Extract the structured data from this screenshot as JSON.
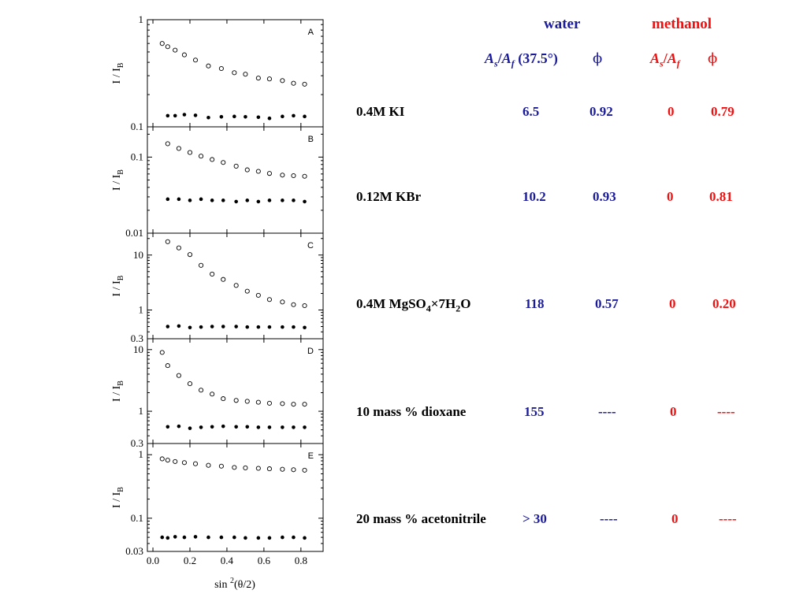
{
  "chart_data": {
    "type": "scatter",
    "xlabel_main": "sin",
    "xlabel_sup": "2",
    "xlabel_tail": "(θ/2)",
    "xticks": [
      "0.0",
      "0.2",
      "0.4",
      "0.6",
      "0.8"
    ],
    "xlim": [
      -0.03,
      0.92
    ],
    "yscale": "log",
    "panels": [
      {
        "letter": "A",
        "ylabel": "I / I",
        "ylabel_sub": "B",
        "ylim": [
          0.1,
          1
        ],
        "yticks": [
          1,
          0.1
        ],
        "ytick_labels": [
          "1",
          "0.1"
        ],
        "series": [
          {
            "marker": "open-circle",
            "x": [
              0.05,
              0.08,
              0.12,
              0.17,
              0.23,
              0.3,
              0.37,
              0.44,
              0.5,
              0.57,
              0.63,
              0.7,
              0.76,
              0.82
            ],
            "y": [
              0.6,
              0.56,
              0.52,
              0.47,
              0.42,
              0.37,
              0.35,
              0.32,
              0.31,
              0.285,
              0.28,
              0.27,
              0.255,
              0.25
            ]
          },
          {
            "marker": "filled-circle",
            "x": [
              0.08,
              0.12,
              0.17,
              0.23,
              0.3,
              0.37,
              0.44,
              0.5,
              0.57,
              0.63,
              0.7,
              0.76,
              0.82
            ],
            "y": [
              0.127,
              0.127,
              0.13,
              0.128,
              0.122,
              0.124,
              0.125,
              0.124,
              0.123,
              0.12,
              0.125,
              0.127,
              0.125
            ]
          }
        ]
      },
      {
        "letter": "B",
        "ylabel": "I / I",
        "ylabel_sub": "B",
        "ylim": [
          0.01,
          0.25
        ],
        "yticks": [
          0.1,
          0.01
        ],
        "ytick_labels": [
          "0.1",
          "0.01"
        ],
        "series": [
          {
            "marker": "open-circle",
            "x": [
              0.08,
              0.14,
              0.2,
              0.26,
              0.32,
              0.38,
              0.45,
              0.51,
              0.57,
              0.63,
              0.7,
              0.76,
              0.82
            ],
            "y": [
              0.15,
              0.13,
              0.115,
              0.103,
              0.093,
              0.085,
              0.076,
              0.068,
              0.065,
              0.061,
              0.058,
              0.057,
              0.056
            ]
          },
          {
            "marker": "filled-circle",
            "x": [
              0.08,
              0.14,
              0.2,
              0.26,
              0.32,
              0.38,
              0.45,
              0.51,
              0.57,
              0.63,
              0.7,
              0.76,
              0.82
            ],
            "y": [
              0.028,
              0.028,
              0.027,
              0.028,
              0.027,
              0.027,
              0.026,
              0.027,
              0.026,
              0.027,
              0.027,
              0.027,
              0.026
            ]
          }
        ]
      },
      {
        "letter": "C",
        "ylabel": "I / I",
        "ylabel_sub": "B",
        "ylim": [
          0.3,
          25
        ],
        "yticks": [
          10,
          1,
          0.3
        ],
        "ytick_labels": [
          "10",
          "1",
          "0.3"
        ],
        "series": [
          {
            "marker": "open-circle",
            "x": [
              0.08,
              0.14,
              0.2,
              0.26,
              0.32,
              0.38,
              0.45,
              0.51,
              0.57,
              0.63,
              0.7,
              0.76,
              0.82
            ],
            "y": [
              17.5,
              13.5,
              10.2,
              6.5,
              4.5,
              3.6,
              2.8,
              2.2,
              1.85,
              1.55,
              1.4,
              1.25,
              1.2
            ]
          },
          {
            "marker": "filled-circle",
            "x": [
              0.08,
              0.14,
              0.2,
              0.26,
              0.32,
              0.38,
              0.45,
              0.51,
              0.57,
              0.63,
              0.7,
              0.76,
              0.82
            ],
            "y": [
              0.5,
              0.51,
              0.48,
              0.49,
              0.5,
              0.5,
              0.5,
              0.49,
              0.49,
              0.49,
              0.49,
              0.49,
              0.48
            ]
          }
        ]
      },
      {
        "letter": "D",
        "ylabel": "I / I",
        "ylabel_sub": "B",
        "ylim": [
          0.3,
          15
        ],
        "yticks": [
          10,
          1,
          0.3
        ],
        "ytick_labels": [
          "10",
          "1",
          "0.3"
        ],
        "series": [
          {
            "marker": "open-circle",
            "x": [
              0.05,
              0.08,
              0.14,
              0.2,
              0.26,
              0.32,
              0.38,
              0.45,
              0.51,
              0.57,
              0.63,
              0.7,
              0.76,
              0.82
            ],
            "y": [
              9.0,
              5.5,
              3.8,
              2.8,
              2.2,
              1.9,
              1.6,
              1.5,
              1.45,
              1.4,
              1.35,
              1.33,
              1.3,
              1.3
            ]
          },
          {
            "marker": "filled-circle",
            "x": [
              0.08,
              0.14,
              0.2,
              0.26,
              0.32,
              0.38,
              0.45,
              0.51,
              0.57,
              0.63,
              0.7,
              0.76,
              0.82
            ],
            "y": [
              0.56,
              0.57,
              0.53,
              0.55,
              0.56,
              0.57,
              0.56,
              0.56,
              0.55,
              0.55,
              0.55,
              0.55,
              0.55
            ]
          }
        ]
      },
      {
        "letter": "E",
        "ylabel": "I / I",
        "ylabel_sub": "B",
        "ylim": [
          0.03,
          1.5
        ],
        "yticks": [
          1,
          0.1,
          0.03
        ],
        "ytick_labels": [
          "1",
          "0.1",
          "0.03"
        ],
        "series": [
          {
            "marker": "open-circle",
            "x": [
              0.05,
              0.08,
              0.12,
              0.17,
              0.23,
              0.3,
              0.37,
              0.44,
              0.5,
              0.57,
              0.63,
              0.7,
              0.76,
              0.82
            ],
            "y": [
              0.86,
              0.82,
              0.78,
              0.75,
              0.72,
              0.68,
              0.66,
              0.63,
              0.62,
              0.61,
              0.6,
              0.59,
              0.58,
              0.57
            ]
          },
          {
            "marker": "filled-circle",
            "x": [
              0.05,
              0.08,
              0.12,
              0.17,
              0.23,
              0.3,
              0.37,
              0.44,
              0.5,
              0.57,
              0.63,
              0.7,
              0.76,
              0.82
            ],
            "y": [
              0.05,
              0.049,
              0.051,
              0.05,
              0.051,
              0.05,
              0.05,
              0.05,
              0.049,
              0.049,
              0.049,
              0.05,
              0.05,
              0.049
            ]
          }
        ]
      }
    ]
  },
  "table": {
    "header": {
      "water": "water",
      "methanol": "methanol"
    },
    "subheader": {
      "water_ratio_a": "A",
      "water_ratio_s": "s",
      "water_ratio_slash": "/",
      "water_ratio_a2": "A",
      "water_ratio_f": "f",
      "water_ratio_angle": "(37.5°)",
      "water_phi": "ϕ",
      "methanol_ratio_a": "A",
      "methanol_ratio_s": "s",
      "methanol_ratio_slash": "/",
      "methanol_ratio_a2": "A",
      "methanol_ratio_f": "f",
      "methanol_phi": "ϕ"
    },
    "rows": [
      {
        "label": "0.4M KI",
        "water_ratio": "6.5",
        "water_phi": "0.92",
        "methanol_ratio": "0",
        "methanol_phi": "0.79"
      },
      {
        "label": "0.12M KBr",
        "water_ratio": "10.2",
        "water_phi": "0.93",
        "methanol_ratio": "0",
        "methanol_phi": "0.81"
      },
      {
        "label_a": "0.4M MgSO",
        "label_sub1": "4",
        "label_b": "×7H",
        "label_sub2": "2",
        "label_c": "O",
        "water_ratio": "118",
        "water_phi": "0.57",
        "methanol_ratio": "0",
        "methanol_phi": "0.20"
      },
      {
        "label": "10 mass % dioxane",
        "water_ratio": "155",
        "water_phi": "----",
        "methanol_ratio": "0",
        "methanol_phi": "----"
      },
      {
        "label": "20 mass % acetonitrile",
        "water_ratio": "> 30",
        "water_phi": "----",
        "methanol_ratio": "0",
        "methanol_phi": "----"
      }
    ]
  }
}
